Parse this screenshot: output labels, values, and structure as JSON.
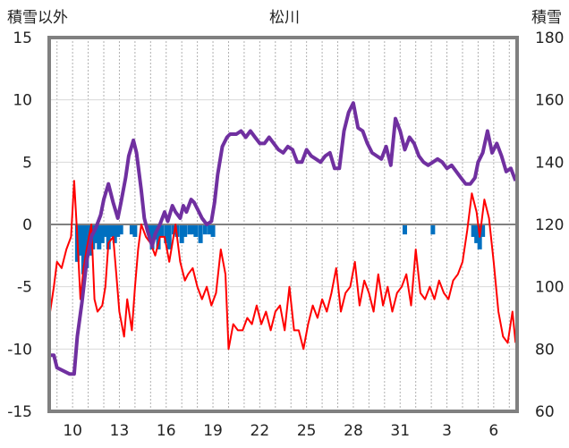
{
  "chart_data": {
    "type": "line",
    "title": "松川",
    "ylabel_left": "積雪以外",
    "ylabel_right": "積雪",
    "x_tick_labels": [
      "10",
      "13",
      "16",
      "19",
      "22",
      "25",
      "28",
      "31",
      "3",
      "6"
    ],
    "x_range": [
      8.5,
      38.5
    ],
    "y_left_range": [
      -15,
      15
    ],
    "y_left_ticks": [
      "15",
      "10",
      "5",
      "0",
      "-5",
      "-10",
      "-15"
    ],
    "y_right_range": [
      60,
      180
    ],
    "y_right_ticks": [
      "180",
      "160",
      "140",
      "120",
      "100",
      "80",
      "60"
    ],
    "colors": {
      "temperature": "#ff0000",
      "snow_depth": "#7030a0",
      "precipitation": "#0070c0",
      "frame": "#808080"
    },
    "series": [
      {
        "name": "気温",
        "axis": "left",
        "color": "#ff0000",
        "x": [
          8.5,
          8.8,
          9.0,
          9.3,
          9.6,
          9.9,
          10.1,
          10.3,
          10.5,
          10.7,
          10.9,
          11.2,
          11.4,
          11.6,
          11.9,
          12.1,
          12.3,
          12.6,
          12.8,
          13.0,
          13.3,
          13.5,
          13.8,
          14.0,
          14.2,
          14.4,
          14.7,
          15.0,
          15.3,
          15.6,
          15.9,
          16.2,
          16.4,
          16.6,
          16.9,
          17.2,
          17.4,
          17.7,
          18.0,
          18.3,
          18.6,
          18.9,
          19.2,
          19.5,
          19.8,
          20.0,
          20.3,
          20.6,
          20.9,
          21.2,
          21.5,
          21.8,
          22.1,
          22.4,
          22.7,
          23.0,
          23.3,
          23.6,
          23.9,
          24.2,
          24.5,
          24.8,
          25.1,
          25.4,
          25.7,
          26.0,
          26.3,
          26.6,
          26.9,
          27.2,
          27.5,
          27.8,
          28.1,
          28.4,
          28.7,
          29.0,
          29.3,
          29.6,
          29.9,
          30.2,
          30.5,
          30.8,
          31.1,
          31.4,
          31.7,
          32.0,
          32.3,
          32.6,
          32.9,
          33.2,
          33.5,
          33.8,
          34.1,
          34.4,
          34.7,
          35.0,
          35.3,
          35.6,
          35.9,
          36.1,
          36.4,
          36.7,
          37.0,
          37.3,
          37.6,
          37.9,
          38.2,
          38.4
        ],
        "values": [
          -7.5,
          -5,
          -3,
          -3.5,
          -2,
          -1,
          3.5,
          -1,
          -6,
          -3.5,
          -2,
          0,
          -6,
          -7,
          -6.5,
          -5,
          -1.5,
          -1,
          -4,
          -7,
          -9,
          -6,
          -8.5,
          -5,
          -2,
          0,
          -1,
          -1.5,
          -2.5,
          -1,
          -1,
          -3,
          -1.5,
          0,
          -3,
          -4.5,
          -4,
          -3.5,
          -5,
          -6,
          -5,
          -6.5,
          -5.5,
          -2,
          -4,
          -10,
          -8,
          -8.5,
          -8.5,
          -7.5,
          -8,
          -6.5,
          -8,
          -7,
          -8.5,
          -7,
          -6.5,
          -8.5,
          -5,
          -8.5,
          -8.5,
          -10,
          -8,
          -6.5,
          -7.5,
          -6,
          -7,
          -5.5,
          -3.5,
          -7,
          -5.5,
          -5,
          -3,
          -6.5,
          -4.5,
          -5.5,
          -7,
          -4,
          -6.5,
          -5,
          -7,
          -5.5,
          -5,
          -4,
          -6.5,
          -2,
          -5.5,
          -6,
          -5,
          -6,
          -4.5,
          -5.5,
          -6,
          -4.5,
          -4,
          -3,
          -0.5,
          2.5,
          1,
          -1,
          2,
          0.5,
          -3,
          -7,
          -9,
          -9.5,
          -7,
          -9.5
        ]
      },
      {
        "name": "積雪",
        "axis": "right",
        "color": "#7030a0",
        "x": [
          8.5,
          8.8,
          9.0,
          9.4,
          9.8,
          10.1,
          10.3,
          10.6,
          10.9,
          11.2,
          11.5,
          11.8,
          12.0,
          12.3,
          12.6,
          12.9,
          13.1,
          13.4,
          13.6,
          13.9,
          14.1,
          14.4,
          14.6,
          14.8,
          15.1,
          15.3,
          15.6,
          15.9,
          16.1,
          16.4,
          16.6,
          16.9,
          17.1,
          17.3,
          17.6,
          17.8,
          18.1,
          18.3,
          18.6,
          18.9,
          19.1,
          19.3,
          19.6,
          19.9,
          20.1,
          20.5,
          20.8,
          21.1,
          21.4,
          21.7,
          22.0,
          22.3,
          22.6,
          22.9,
          23.2,
          23.5,
          23.8,
          24.1,
          24.4,
          24.7,
          25.0,
          25.3,
          25.6,
          25.9,
          26.2,
          26.5,
          26.8,
          27.1,
          27.4,
          27.7,
          28.0,
          28.3,
          28.6,
          28.9,
          29.2,
          29.5,
          29.8,
          30.1,
          30.4,
          30.7,
          31.0,
          31.3,
          31.6,
          31.9,
          32.2,
          32.5,
          32.8,
          33.1,
          33.4,
          33.7,
          34.0,
          34.3,
          34.6,
          34.9,
          35.2,
          35.5,
          35.8,
          36.0,
          36.3,
          36.6,
          36.9,
          37.2,
          37.5,
          37.8,
          38.1,
          38.4
        ],
        "values": [
          78,
          78,
          74,
          73,
          72,
          72,
          84,
          95,
          108,
          116,
          119,
          123,
          128,
          133,
          127,
          122,
          127,
          135,
          142,
          147,
          143,
          131,
          122,
          118,
          113,
          117,
          120,
          124,
          121,
          126,
          124,
          122,
          126,
          124,
          128,
          127,
          124,
          122,
          120,
          121,
          127,
          136,
          145,
          148,
          149,
          149,
          150,
          148,
          150,
          148,
          146,
          146,
          148,
          146,
          144,
          143,
          145,
          144,
          140,
          140,
          144,
          142,
          141,
          140,
          142,
          143,
          138,
          138,
          150,
          156,
          159,
          151,
          150,
          146,
          143,
          142,
          141,
          145,
          139,
          154,
          150,
          144,
          148,
          146,
          142,
          140,
          139,
          140,
          141,
          140,
          138,
          139,
          137,
          135,
          133,
          133,
          135,
          140,
          143,
          150,
          143,
          146,
          142,
          137,
          138,
          134
        ]
      },
      {
        "name": "降水量",
        "axis": "left",
        "type": "bar",
        "color": "#0070c0",
        "x": [
          10.3,
          10.5,
          10.7,
          10.9,
          11.1,
          11.3,
          11.5,
          11.7,
          11.9,
          12.1,
          12.3,
          12.5,
          12.7,
          12.9,
          13.1,
          13.8,
          14.0,
          14.9,
          15.1,
          15.3,
          15.5,
          15.7,
          16.0,
          16.2,
          16.5,
          16.7,
          17.0,
          17.2,
          17.5,
          17.7,
          17.9,
          18.2,
          18.5,
          18.8,
          19.0,
          31.3,
          33.1,
          35.7,
          35.9,
          36.1,
          36.3
        ],
        "values": [
          -3,
          -2.5,
          -4,
          -3.5,
          -2.5,
          -2,
          -1.5,
          -2,
          -1.5,
          -1,
          -2,
          -1,
          -1.5,
          -1,
          -0.8,
          -0.8,
          -1,
          -0.8,
          -2,
          -1.2,
          -2,
          -1,
          -1.5,
          -2,
          -0.8,
          -1,
          -1.5,
          -1,
          -0.8,
          -0.8,
          -1,
          -1.5,
          -0.8,
          -0.8,
          -1,
          -0.8,
          -0.8,
          -1,
          -1.5,
          -2,
          -1
        ]
      }
    ]
  }
}
